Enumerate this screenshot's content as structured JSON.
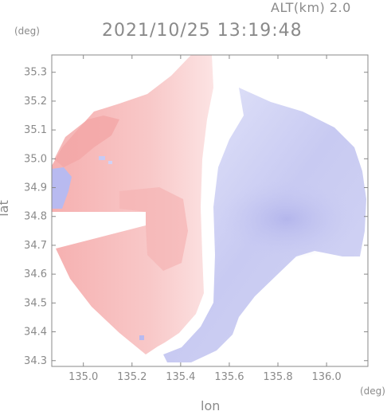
{
  "header": {
    "altitude_label": "ALT(km) 2.0",
    "timestamp": "2021/10/25 13:19:48"
  },
  "chart_data": {
    "type": "heatmap",
    "title": "2021/10/25 13:19:48",
    "xlabel": "lon",
    "ylabel": "lat",
    "x_unit": "(deg)",
    "y_unit": "(deg)",
    "xlim": [
      134.87,
      136.17
    ],
    "ylim": [
      34.28,
      35.36
    ],
    "x_ticks": [
      "135.0",
      "135.2",
      "135.4",
      "135.6",
      "135.8",
      "136.0"
    ],
    "y_ticks": [
      "34.3",
      "34.4",
      "34.5",
      "34.6",
      "34.7",
      "34.8",
      "34.9",
      "35.0",
      "35.1",
      "35.2",
      "35.3"
    ],
    "grid": false,
    "colors": {
      "positive": "#f2a0a0",
      "neutral": "#ffffff",
      "negative": "#b0b0ee",
      "axis": "#888888"
    }
  }
}
